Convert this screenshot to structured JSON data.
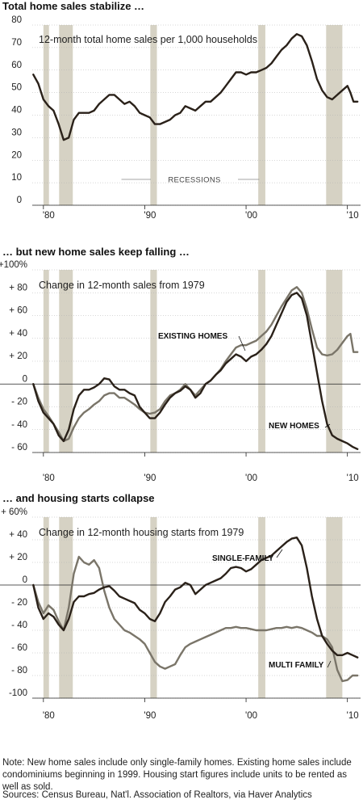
{
  "colors": {
    "dark_line": "#2a2119",
    "gray_line": "#7a7569",
    "recession": "#d6d2c4",
    "gridline": "#b0b0b0"
  },
  "recessions": [
    [
      1980.0,
      1980.55
    ],
    [
      1981.55,
      1982.9
    ],
    [
      1990.55,
      1991.2
    ],
    [
      2001.2,
      2001.9
    ],
    [
      2007.9,
      2009.5
    ]
  ],
  "chart_data": [
    {
      "type": "line",
      "title": "Total home sales stabilize …",
      "annotation": "12-month total home sales per 1,000 households",
      "recession_label": "RECESSIONS",
      "x_tick_labels": [
        "'80",
        "'90",
        "'00",
        "'10"
      ],
      "x_ticks": [
        1980,
        1990,
        2000,
        2010
      ],
      "y_tick_labels": [
        "80",
        "70",
        "60",
        "50",
        "40",
        "30",
        "20",
        "10",
        "0"
      ],
      "ylim": [
        0,
        80
      ],
      "xlim": [
        1978.9,
        2011.3
      ],
      "series": [
        {
          "x": [
            1979.0,
            1979.5,
            1980.0,
            1980.5,
            1981.0,
            1981.5,
            1982.0,
            1982.5,
            1983.0,
            1983.5,
            1984.0,
            1984.5,
            1985.0,
            1985.5,
            1986.0,
            1986.5,
            1987.0,
            1987.5,
            1988.0,
            1988.5,
            1989.0,
            1989.5,
            1990.0,
            1990.5,
            1991.0,
            1991.5,
            1992.0,
            1992.5,
            1993.0,
            1993.5,
            1994.0,
            1994.5,
            1995.0,
            1995.5,
            1996.0,
            1996.5,
            1997.0,
            1997.5,
            1998.0,
            1998.5,
            1999.0,
            1999.5,
            2000.0,
            2000.5,
            2001.0,
            2001.5,
            2002.0,
            2002.5,
            2003.0,
            2003.5,
            2004.0,
            2004.5,
            2005.0,
            2005.5,
            2006.0,
            2006.5,
            2007.0,
            2007.5,
            2008.0,
            2008.5,
            2009.0,
            2009.5,
            2010.0,
            2010.3,
            2010.6,
            2011.0
          ],
          "values": [
            58,
            54,
            47,
            44,
            42,
            36,
            29,
            30,
            38,
            41,
            41,
            41,
            42,
            45,
            47,
            49,
            49,
            47,
            45,
            46,
            44,
            41,
            40,
            39,
            36,
            36,
            37,
            38,
            40,
            41,
            44,
            43,
            42,
            44,
            46,
            46,
            48,
            50,
            53,
            56,
            59,
            59,
            58,
            59,
            59,
            60,
            61,
            63,
            66,
            69,
            71,
            74,
            76,
            75,
            71,
            64,
            56,
            51,
            48,
            47,
            49,
            51,
            53,
            50,
            46,
            46
          ]
        }
      ]
    },
    {
      "type": "line",
      "title": "… but new home sales keep falling …",
      "annotation": "Change in 12-month sales from 1979",
      "x_tick_labels": [
        "'80",
        "'90",
        "'00",
        "'10"
      ],
      "x_ticks": [
        1980,
        1990,
        2000,
        2010
      ],
      "y_tick_labels": [
        "+100%",
        "+ 80",
        "+ 60",
        "+ 40",
        "+ 20",
        "0",
        "- 20",
        "- 40",
        "- 60"
      ],
      "ylim": [
        -60,
        100
      ],
      "xlim": [
        1978.9,
        2011.3
      ],
      "series": [
        {
          "name": "NEW HOMES",
          "x": [
            1979.0,
            1979.5,
            1980.0,
            1980.5,
            1981.0,
            1981.5,
            1982.0,
            1982.5,
            1983.0,
            1983.5,
            1984.0,
            1984.5,
            1985.0,
            1985.5,
            1986.0,
            1986.5,
            1987.0,
            1987.5,
            1988.0,
            1988.5,
            1989.0,
            1989.5,
            1990.0,
            1990.5,
            1991.0,
            1991.5,
            1992.0,
            1992.5,
            1993.0,
            1993.5,
            1994.0,
            1994.5,
            1995.0,
            1995.5,
            1996.0,
            1996.5,
            1997.0,
            1997.5,
            1998.0,
            1998.5,
            1999.0,
            1999.5,
            2000.0,
            2000.5,
            2001.0,
            2001.5,
            2002.0,
            2002.5,
            2003.0,
            2003.5,
            2004.0,
            2004.5,
            2005.0,
            2005.5,
            2006.0,
            2006.5,
            2007.0,
            2007.5,
            2008.0,
            2008.5,
            2009.0,
            2009.5,
            2010.0,
            2010.5,
            2011.0
          ],
          "values": [
            0,
            -15,
            -25,
            -30,
            -35,
            -45,
            -50,
            -40,
            -22,
            -10,
            -5,
            -5,
            -3,
            0,
            5,
            4,
            -2,
            -5,
            -5,
            -8,
            -10,
            -20,
            -25,
            -30,
            -30,
            -25,
            -18,
            -12,
            -8,
            -6,
            -2,
            -5,
            -12,
            -8,
            0,
            3,
            8,
            12,
            18,
            22,
            26,
            24,
            20,
            24,
            26,
            30,
            35,
            42,
            52,
            62,
            72,
            78,
            80,
            75,
            60,
            35,
            10,
            -15,
            -35,
            -45,
            -48,
            -50,
            -52,
            -55,
            -57
          ]
        },
        {
          "name": "EXISTING HOMES",
          "x": [
            1979.0,
            1979.5,
            1980.0,
            1980.5,
            1981.0,
            1981.5,
            1982.0,
            1982.5,
            1983.0,
            1983.5,
            1984.0,
            1984.5,
            1985.0,
            1985.5,
            1986.0,
            1986.5,
            1987.0,
            1987.5,
            1988.0,
            1988.5,
            1989.0,
            1989.5,
            1990.0,
            1990.5,
            1991.0,
            1991.5,
            1992.0,
            1992.5,
            1993.0,
            1993.5,
            1994.0,
            1994.5,
            1995.0,
            1995.5,
            1996.0,
            1996.5,
            1997.0,
            1997.5,
            1998.0,
            1998.5,
            1999.0,
            1999.5,
            2000.0,
            2000.5,
            2001.0,
            2001.5,
            2002.0,
            2002.5,
            2003.0,
            2003.5,
            2004.0,
            2004.5,
            2005.0,
            2005.5,
            2006.0,
            2006.5,
            2007.0,
            2007.5,
            2008.0,
            2008.5,
            2009.0,
            2009.5,
            2010.0,
            2010.3,
            2010.6,
            2011.0
          ],
          "values": [
            0,
            -12,
            -22,
            -28,
            -35,
            -42,
            -50,
            -48,
            -38,
            -30,
            -25,
            -22,
            -18,
            -15,
            -10,
            -8,
            -8,
            -12,
            -12,
            -15,
            -18,
            -22,
            -25,
            -26,
            -25,
            -22,
            -15,
            -10,
            -8,
            -5,
            0,
            -5,
            -10,
            -5,
            0,
            3,
            8,
            13,
            20,
            26,
            32,
            34,
            34,
            36,
            38,
            42,
            46,
            52,
            60,
            68,
            75,
            82,
            85,
            80,
            66,
            48,
            32,
            26,
            25,
            26,
            30,
            36,
            42,
            44,
            28,
            28
          ]
        }
      ]
    },
    {
      "type": "line",
      "title": "… and housing starts collapse",
      "annotation": "Change in 12-month housing starts from 1979",
      "x_tick_labels": [
        "'80",
        "'90",
        "'00",
        "'10"
      ],
      "x_ticks": [
        1980,
        1990,
        2000,
        2010
      ],
      "y_tick_labels": [
        "+ 60%",
        "+ 40",
        "+ 20",
        "0",
        "- 20",
        "- 40",
        "- 60",
        "- 80",
        "-100"
      ],
      "ylim": [
        -100,
        60
      ],
      "xlim": [
        1978.9,
        2011.3
      ],
      "series": [
        {
          "name": "SINGLE-FAMILY",
          "x": [
            1979.0,
            1979.5,
            1980.0,
            1980.5,
            1981.0,
            1981.5,
            1982.0,
            1982.5,
            1983.0,
            1983.5,
            1984.0,
            1984.5,
            1985.0,
            1985.5,
            1986.0,
            1986.5,
            1987.0,
            1987.5,
            1988.0,
            1988.5,
            1989.0,
            1989.5,
            1990.0,
            1990.5,
            1991.0,
            1991.5,
            1992.0,
            1992.5,
            1993.0,
            1993.5,
            1994.0,
            1994.5,
            1995.0,
            1995.5,
            1996.0,
            1996.5,
            1997.0,
            1997.5,
            1998.0,
            1998.5,
            1999.0,
            1999.5,
            2000.0,
            2000.5,
            2001.0,
            2001.5,
            2002.0,
            2002.5,
            2003.0,
            2003.5,
            2004.0,
            2004.5,
            2005.0,
            2005.5,
            2006.0,
            2006.5,
            2007.0,
            2007.5,
            2008.0,
            2008.5,
            2009.0,
            2009.5,
            2010.0,
            2010.5,
            2011.0
          ],
          "values": [
            0,
            -20,
            -30,
            -25,
            -28,
            -35,
            -40,
            -30,
            -15,
            -10,
            -10,
            -8,
            -7,
            -4,
            -2,
            -1,
            -5,
            -10,
            -12,
            -14,
            -16,
            -22,
            -25,
            -30,
            -32,
            -25,
            -15,
            -10,
            -4,
            -2,
            2,
            0,
            -8,
            -4,
            0,
            2,
            4,
            6,
            10,
            15,
            16,
            15,
            12,
            14,
            18,
            22,
            24,
            26,
            30,
            34,
            38,
            41,
            42,
            35,
            15,
            -10,
            -30,
            -45,
            -52,
            -58,
            -62,
            -62,
            -60,
            -62,
            -64
          ]
        },
        {
          "name": "MULTI FAMILY",
          "x": [
            1979.0,
            1979.5,
            1980.0,
            1980.5,
            1981.0,
            1981.5,
            1982.0,
            1982.5,
            1983.0,
            1983.5,
            1984.0,
            1984.5,
            1985.0,
            1985.5,
            1986.0,
            1986.5,
            1987.0,
            1987.5,
            1988.0,
            1988.5,
            1989.0,
            1989.5,
            1990.0,
            1990.5,
            1991.0,
            1991.5,
            1992.0,
            1992.5,
            1993.0,
            1993.5,
            1994.0,
            1994.5,
            1995.0,
            1995.5,
            1996.0,
            1996.5,
            1997.0,
            1997.5,
            1998.0,
            1998.5,
            1999.0,
            1999.5,
            2000.0,
            2000.5,
            2001.0,
            2001.5,
            2002.0,
            2002.5,
            2003.0,
            2003.5,
            2004.0,
            2004.5,
            2005.0,
            2005.5,
            2006.0,
            2006.5,
            2007.0,
            2007.5,
            2008.0,
            2008.5,
            2009.0,
            2009.5,
            2010.0,
            2010.5,
            2011.0
          ],
          "values": [
            0,
            -15,
            -25,
            -18,
            -22,
            -32,
            -40,
            -20,
            10,
            25,
            20,
            18,
            22,
            15,
            -5,
            -20,
            -30,
            -35,
            -40,
            -42,
            -45,
            -48,
            -52,
            -60,
            -68,
            -72,
            -74,
            -72,
            -70,
            -62,
            -55,
            -52,
            -50,
            -48,
            -46,
            -44,
            -42,
            -40,
            -38,
            -38,
            -37,
            -38,
            -38,
            -39,
            -40,
            -40,
            -40,
            -39,
            -38,
            -38,
            -37,
            -38,
            -37,
            -38,
            -40,
            -42,
            -45,
            -45,
            -48,
            -55,
            -75,
            -85,
            -84,
            -80,
            -80
          ]
        }
      ]
    }
  ],
  "footer": {
    "note": "Note: New home sales include only single-family homes. Existing home sales include condominiums beginning in 1999. Housing start figures include units to be rented as well as sold.",
    "sources": "Sources: Census Bureau, Nat'l. Association of Realtors, via Haver Analytics"
  }
}
